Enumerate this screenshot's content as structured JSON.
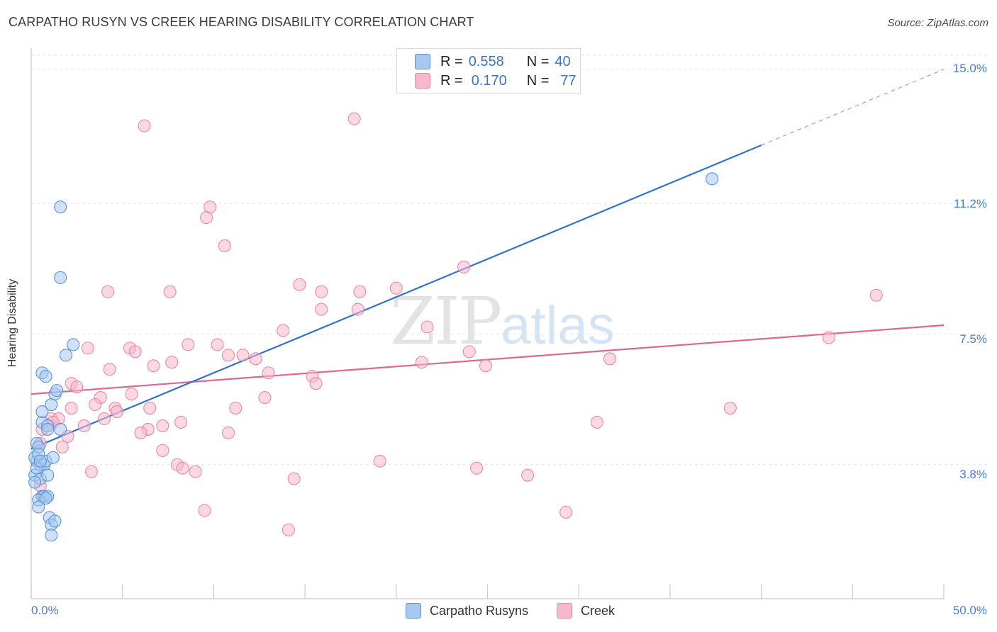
{
  "title": "CARPATHO RUSYN VS CREEK HEARING DISABILITY CORRELATION CHART",
  "source": "Source: ZipAtlas.com",
  "watermark": {
    "zip": "ZIP",
    "atlas": "atlas"
  },
  "legend": {
    "rows": [
      {
        "r_label": "R =",
        "r_value": "0.558",
        "n_label": "N =",
        "n_value": "40",
        "color": "#a8c8f0"
      },
      {
        "r_label": "R =",
        "r_value": "0.170",
        "n_label": "N =",
        "n_value": "77",
        "color": "#f7b8cb"
      }
    ]
  },
  "colors": {
    "series1_fill": "#a8c8f0",
    "series1_stroke": "#5b93d6",
    "series1_line": "#2f72d0",
    "series2_fill": "#f7b8cb",
    "series2_stroke": "#e889a8",
    "series2_line": "#e06590",
    "tick_text": "#4a7fcc",
    "grid": "#e3e3e3"
  },
  "chart_data": {
    "type": "scatter",
    "title": "CARPATHO RUSYN VS CREEK HEARING DISABILITY CORRELATION CHART",
    "xlabel": "",
    "ylabel": "Hearing Disability",
    "xlim": [
      0,
      50
    ],
    "ylim": [
      0,
      15.4
    ],
    "x_tick_labels": [
      "0.0%",
      "50.0%"
    ],
    "y_ticks": [
      3.8,
      7.5,
      11.2,
      15.0
    ],
    "y_tick_labels": [
      "3.8%",
      "7.5%",
      "11.2%",
      "15.0%"
    ],
    "grid": true,
    "legend_position": "top-center",
    "series": [
      {
        "name": "Carpatho Rusyns",
        "R": 0.558,
        "N": 40,
        "trend": {
          "x0": 0.0,
          "y0": 4.25,
          "x1": 40.0,
          "y1": 12.85,
          "dash_to_x": 50.0,
          "dash_to_y": 15.0
        },
        "points": [
          [
            0.3,
            4.4
          ],
          [
            0.4,
            4.3
          ],
          [
            0.3,
            3.9
          ],
          [
            0.5,
            3.8
          ],
          [
            0.7,
            3.8
          ],
          [
            0.8,
            3.9
          ],
          [
            0.2,
            3.5
          ],
          [
            0.5,
            3.4
          ],
          [
            0.9,
            3.5
          ],
          [
            0.2,
            3.3
          ],
          [
            0.6,
            2.9
          ],
          [
            0.7,
            2.9
          ],
          [
            0.9,
            2.9
          ],
          [
            0.4,
            2.8
          ],
          [
            0.4,
            2.6
          ],
          [
            1.0,
            2.3
          ],
          [
            1.1,
            2.1
          ],
          [
            1.3,
            2.2
          ],
          [
            1.1,
            1.8
          ],
          [
            0.6,
            5.0
          ],
          [
            0.6,
            5.3
          ],
          [
            1.1,
            5.5
          ],
          [
            1.3,
            5.8
          ],
          [
            1.4,
            5.9
          ],
          [
            0.9,
            4.9
          ],
          [
            0.9,
            4.8
          ],
          [
            1.6,
            4.8
          ],
          [
            0.6,
            6.4
          ],
          [
            0.8,
            6.3
          ],
          [
            1.9,
            6.9
          ],
          [
            2.3,
            7.2
          ],
          [
            1.6,
            9.1
          ],
          [
            1.6,
            11.1
          ],
          [
            0.2,
            4.0
          ],
          [
            0.4,
            4.1
          ],
          [
            1.2,
            4.0
          ],
          [
            0.3,
            3.7
          ],
          [
            0.5,
            3.9
          ],
          [
            37.3,
            11.9
          ],
          [
            0.8,
            2.85
          ]
        ]
      },
      {
        "name": "Creek",
        "R": 0.17,
        "N": 77,
        "trend": {
          "x0": 0.0,
          "y0": 5.8,
          "x1": 50.0,
          "y1": 7.75
        },
        "points": [
          [
            6.2,
            13.4
          ],
          [
            17.7,
            13.6
          ],
          [
            9.6,
            10.8
          ],
          [
            9.8,
            11.1
          ],
          [
            10.6,
            10.0
          ],
          [
            14.7,
            8.9
          ],
          [
            15.9,
            8.7
          ],
          [
            17.9,
            8.2
          ],
          [
            18.0,
            8.7
          ],
          [
            20.0,
            8.8
          ],
          [
            23.7,
            9.4
          ],
          [
            4.2,
            8.7
          ],
          [
            7.6,
            8.7
          ],
          [
            15.9,
            8.2
          ],
          [
            46.3,
            8.6
          ],
          [
            43.7,
            7.4
          ],
          [
            13.8,
            7.6
          ],
          [
            21.7,
            7.7
          ],
          [
            24.0,
            7.0
          ],
          [
            3.1,
            7.1
          ],
          [
            5.4,
            7.1
          ],
          [
            5.7,
            7.0
          ],
          [
            8.6,
            7.2
          ],
          [
            10.2,
            7.2
          ],
          [
            10.8,
            6.9
          ],
          [
            11.6,
            6.9
          ],
          [
            12.3,
            6.8
          ],
          [
            7.7,
            6.7
          ],
          [
            6.7,
            6.6
          ],
          [
            4.3,
            6.5
          ],
          [
            21.4,
            6.7
          ],
          [
            24.9,
            6.6
          ],
          [
            31.7,
            6.8
          ],
          [
            15.4,
            6.3
          ],
          [
            13.0,
            6.4
          ],
          [
            15.6,
            6.1
          ],
          [
            2.2,
            6.1
          ],
          [
            2.5,
            6.0
          ],
          [
            3.8,
            5.7
          ],
          [
            5.5,
            5.8
          ],
          [
            12.8,
            5.7
          ],
          [
            3.5,
            5.5
          ],
          [
            4.6,
            5.4
          ],
          [
            1.1,
            5.1
          ],
          [
            2.2,
            5.4
          ],
          [
            4.7,
            5.3
          ],
          [
            6.5,
            5.4
          ],
          [
            11.2,
            5.4
          ],
          [
            38.3,
            5.4
          ],
          [
            4.0,
            5.1
          ],
          [
            1.5,
            5.1
          ],
          [
            1.2,
            5.0
          ],
          [
            0.6,
            4.8
          ],
          [
            0.9,
            4.9
          ],
          [
            2.9,
            4.9
          ],
          [
            7.2,
            4.9
          ],
          [
            8.2,
            5.0
          ],
          [
            31.0,
            5.0
          ],
          [
            6.4,
            4.8
          ],
          [
            6.0,
            4.7
          ],
          [
            10.8,
            4.7
          ],
          [
            2.0,
            4.6
          ],
          [
            1.7,
            4.3
          ],
          [
            7.2,
            4.2
          ],
          [
            0.5,
            4.4
          ],
          [
            3.3,
            3.6
          ],
          [
            8.0,
            3.8
          ],
          [
            8.3,
            3.7
          ],
          [
            9.0,
            3.6
          ],
          [
            19.1,
            3.9
          ],
          [
            24.4,
            3.7
          ],
          [
            27.2,
            3.5
          ],
          [
            14.4,
            3.4
          ],
          [
            0.5,
            3.2
          ],
          [
            0.6,
            2.9
          ],
          [
            9.5,
            2.5
          ],
          [
            29.3,
            2.45
          ],
          [
            14.1,
            1.95
          ]
        ]
      }
    ]
  }
}
